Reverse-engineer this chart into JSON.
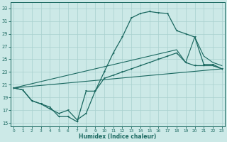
{
  "xlabel": "Humidex (Indice chaleur)",
  "xlim": [
    0,
    23
  ],
  "ylim": [
    14.5,
    34.0
  ],
  "yticks": [
    15,
    17,
    19,
    21,
    23,
    25,
    27,
    29,
    31,
    33
  ],
  "xticks": [
    0,
    1,
    2,
    3,
    4,
    5,
    6,
    7,
    8,
    9,
    10,
    11,
    12,
    13,
    14,
    15,
    16,
    17,
    18,
    19,
    20,
    21,
    22,
    23
  ],
  "bg_color": "#cce9e7",
  "grid_color": "#a8d0ce",
  "line_color": "#1a6860",
  "line1_x": [
    0,
    1,
    2,
    3,
    4,
    5,
    6,
    7,
    8,
    9,
    10,
    11,
    12,
    13,
    14,
    15,
    16,
    17,
    18,
    19,
    20,
    21,
    22,
    23
  ],
  "line1_y": [
    20.5,
    20.2,
    18.5,
    18.0,
    17.2,
    16.5,
    17.0,
    15.5,
    16.5,
    20.0,
    23.0,
    26.0,
    28.5,
    31.5,
    32.2,
    32.5,
    32.3,
    32.2,
    29.5,
    29.0,
    28.5,
    24.2,
    24.2,
    23.5
  ],
  "line2_x": [
    0,
    1,
    2,
    3,
    4,
    5,
    6,
    7,
    8,
    9,
    10,
    11,
    12,
    13,
    14,
    15,
    16,
    17,
    18,
    19,
    20,
    21,
    22,
    23
  ],
  "line2_y": [
    20.5,
    20.2,
    18.5,
    18.0,
    17.5,
    16.0,
    16.0,
    15.2,
    20.0,
    20.0,
    22.0,
    22.5,
    23.0,
    23.5,
    24.0,
    24.5,
    25.0,
    25.5,
    26.0,
    24.5,
    24.0,
    24.0,
    24.0,
    23.5
  ],
  "line3_x": [
    0,
    18,
    19,
    20,
    21,
    22,
    23
  ],
  "line3_y": [
    20.5,
    26.5,
    24.5,
    28.5,
    25.5,
    24.5,
    24.0
  ],
  "line4_x": [
    0,
    23
  ],
  "line4_y": [
    20.5,
    23.5
  ],
  "figsize": [
    3.2,
    2.0
  ],
  "dpi": 100
}
